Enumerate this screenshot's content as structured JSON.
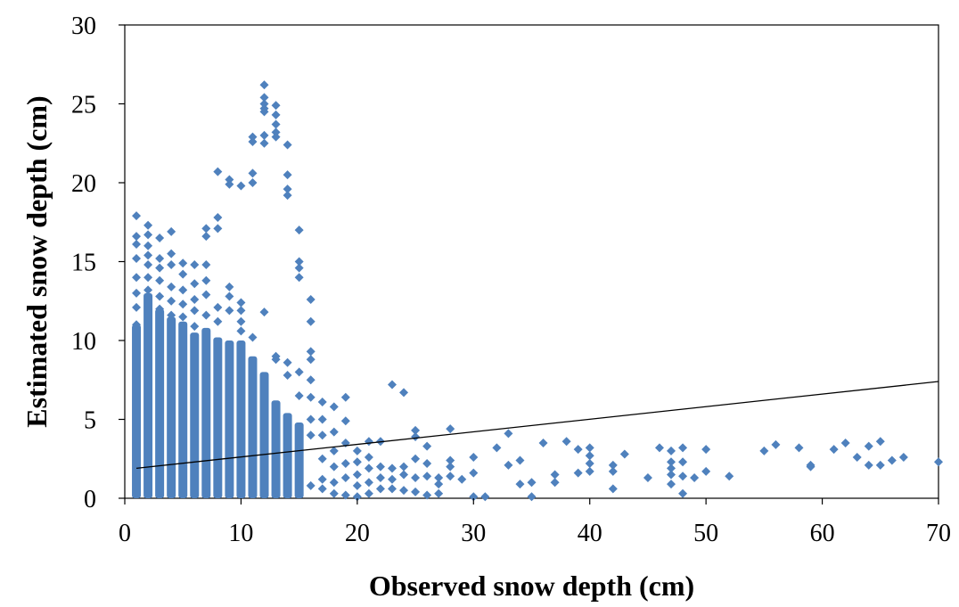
{
  "chart_data": {
    "type": "scatter",
    "title": "",
    "xlabel": "Observed snow depth (cm)",
    "ylabel": "Estimated snow depth (cm)",
    "xlim": [
      0,
      70
    ],
    "ylim": [
      0,
      30
    ],
    "xticks": [
      "0",
      "10",
      "20",
      "30",
      "40",
      "50",
      "60",
      "70"
    ],
    "yticks": [
      "0",
      "5",
      "10",
      "15",
      "20",
      "25",
      "30"
    ],
    "grid": false,
    "legend": "none",
    "colors": {
      "points": "#4f81bd",
      "trendline": "#000000",
      "axes": "#000000"
    },
    "trendline": {
      "x": [
        1,
        70
      ],
      "y": [
        1.9,
        7.4
      ]
    },
    "series": [
      {
        "points": [
          [
            1,
            17.9
          ],
          [
            1,
            16.6
          ],
          [
            1,
            16.1
          ],
          [
            1,
            15.2
          ],
          [
            1,
            14.0
          ],
          [
            1,
            13.0
          ],
          [
            1,
            12.1
          ],
          [
            1,
            11.0
          ],
          [
            2,
            17.3
          ],
          [
            2,
            16.7
          ],
          [
            2,
            16.0
          ],
          [
            2,
            15.4
          ],
          [
            2,
            14.8
          ],
          [
            2,
            14.0
          ],
          [
            2,
            13.2
          ],
          [
            3,
            16.5
          ],
          [
            3,
            15.2
          ],
          [
            3,
            14.6
          ],
          [
            3,
            13.8
          ],
          [
            3,
            12.8
          ],
          [
            3,
            12.0
          ],
          [
            4,
            16.9
          ],
          [
            4,
            15.5
          ],
          [
            4,
            14.8
          ],
          [
            4,
            13.4
          ],
          [
            4,
            12.5
          ],
          [
            4,
            11.6
          ],
          [
            5,
            14.9
          ],
          [
            5,
            14.2
          ],
          [
            5,
            13.2
          ],
          [
            5,
            12.3
          ],
          [
            5,
            11.5
          ],
          [
            6,
            14.8
          ],
          [
            6,
            13.6
          ],
          [
            6,
            12.6
          ],
          [
            6,
            11.9
          ],
          [
            6,
            10.9
          ],
          [
            7,
            17.1
          ],
          [
            7,
            16.6
          ],
          [
            7,
            14.8
          ],
          [
            7,
            13.8
          ],
          [
            7,
            12.9
          ],
          [
            7,
            11.6
          ],
          [
            8,
            20.7
          ],
          [
            8,
            17.8
          ],
          [
            8,
            17.1
          ],
          [
            8,
            12.1
          ],
          [
            8,
            11.2
          ],
          [
            9,
            20.2
          ],
          [
            9,
            19.9
          ],
          [
            9,
            13.4
          ],
          [
            9,
            12.8
          ],
          [
            9,
            11.9
          ],
          [
            10,
            19.8
          ],
          [
            10,
            12.4
          ],
          [
            10,
            11.9
          ],
          [
            10,
            11.2
          ],
          [
            10,
            10.6
          ],
          [
            11,
            22.9
          ],
          [
            11,
            22.6
          ],
          [
            11,
            20.6
          ],
          [
            11,
            20.0
          ],
          [
            11,
            10.2
          ],
          [
            12,
            26.2
          ],
          [
            12,
            25.4
          ],
          [
            12,
            25.0
          ],
          [
            12,
            24.7
          ],
          [
            12,
            24.5
          ],
          [
            12,
            23.0
          ],
          [
            12,
            22.5
          ],
          [
            12,
            11.8
          ],
          [
            13,
            24.9
          ],
          [
            13,
            24.3
          ],
          [
            13,
            23.7
          ],
          [
            13,
            23.2
          ],
          [
            13,
            22.9
          ],
          [
            13,
            9.0
          ],
          [
            13,
            8.8
          ],
          [
            14,
            22.4
          ],
          [
            14,
            20.5
          ],
          [
            14,
            19.6
          ],
          [
            14,
            19.2
          ],
          [
            14,
            8.6
          ],
          [
            14,
            7.8
          ],
          [
            15,
            17.0
          ],
          [
            15,
            15.0
          ],
          [
            15,
            14.6
          ],
          [
            15,
            14.0
          ],
          [
            15,
            8.0
          ],
          [
            15,
            6.5
          ],
          [
            16,
            12.6
          ],
          [
            16,
            11.2
          ],
          [
            16,
            9.3
          ],
          [
            16,
            8.8
          ],
          [
            16,
            7.5
          ],
          [
            16,
            6.4
          ],
          [
            16,
            5.0
          ],
          [
            16,
            4.0
          ],
          [
            16,
            0.8
          ],
          [
            17,
            6.1
          ],
          [
            17,
            5.0
          ],
          [
            17,
            4.0
          ],
          [
            17,
            2.5
          ],
          [
            17,
            1.2
          ],
          [
            17,
            0.6
          ],
          [
            18,
            5.8
          ],
          [
            18,
            4.2
          ],
          [
            18,
            3.0
          ],
          [
            18,
            2.0
          ],
          [
            18,
            1.0
          ],
          [
            18,
            0.3
          ],
          [
            19,
            6.4
          ],
          [
            19,
            4.9
          ],
          [
            19,
            3.5
          ],
          [
            19,
            2.2
          ],
          [
            19,
            1.3
          ],
          [
            19,
            0.2
          ],
          [
            20,
            3.0
          ],
          [
            20,
            2.3
          ],
          [
            20,
            1.5
          ],
          [
            20,
            0.8
          ],
          [
            20,
            0.1
          ],
          [
            21,
            3.6
          ],
          [
            21,
            2.6
          ],
          [
            21,
            1.9
          ],
          [
            21,
            1.0
          ],
          [
            21,
            0.3
          ],
          [
            22,
            3.6
          ],
          [
            22,
            2.0
          ],
          [
            22,
            1.3
          ],
          [
            22,
            0.6
          ],
          [
            23,
            7.2
          ],
          [
            23,
            1.9
          ],
          [
            23,
            1.2
          ],
          [
            23,
            0.6
          ],
          [
            24,
            6.7
          ],
          [
            24,
            2.0
          ],
          [
            24,
            1.5
          ],
          [
            24,
            0.5
          ],
          [
            25,
            4.3
          ],
          [
            25,
            3.9
          ],
          [
            25,
            2.5
          ],
          [
            25,
            1.3
          ],
          [
            25,
            0.4
          ],
          [
            26,
            3.3
          ],
          [
            26,
            2.2
          ],
          [
            26,
            1.4
          ],
          [
            26,
            0.2
          ],
          [
            27,
            1.3
          ],
          [
            27,
            0.9
          ],
          [
            27,
            0.3
          ],
          [
            28,
            4.4
          ],
          [
            28,
            2.4
          ],
          [
            28,
            2.0
          ],
          [
            28,
            1.4
          ],
          [
            29,
            1.2
          ],
          [
            30,
            2.6
          ],
          [
            30,
            1.6
          ],
          [
            30,
            0.1
          ],
          [
            31,
            0.1
          ],
          [
            32,
            3.2
          ],
          [
            33,
            4.1
          ],
          [
            33,
            2.1
          ],
          [
            34,
            2.4
          ],
          [
            34,
            0.9
          ],
          [
            35,
            1.0
          ],
          [
            35,
            0.1
          ],
          [
            36,
            3.5
          ],
          [
            37,
            1.5
          ],
          [
            37,
            1.0
          ],
          [
            38,
            3.6
          ],
          [
            39,
            3.1
          ],
          [
            39,
            1.6
          ],
          [
            40,
            3.2
          ],
          [
            40,
            2.7
          ],
          [
            40,
            2.2
          ],
          [
            40,
            1.7
          ],
          [
            42,
            2.1
          ],
          [
            42,
            1.7
          ],
          [
            42,
            0.6
          ],
          [
            43,
            2.8
          ],
          [
            45,
            1.3
          ],
          [
            46,
            3.2
          ],
          [
            47,
            3.0
          ],
          [
            47,
            2.3
          ],
          [
            47,
            1.9
          ],
          [
            47,
            1.5
          ],
          [
            47,
            0.9
          ],
          [
            48,
            3.2
          ],
          [
            48,
            2.3
          ],
          [
            48,
            1.4
          ],
          [
            48,
            0.3
          ],
          [
            49,
            1.3
          ],
          [
            50,
            3.1
          ],
          [
            50,
            1.7
          ],
          [
            52,
            1.4
          ],
          [
            55,
            3.0
          ],
          [
            56,
            3.4
          ],
          [
            58,
            3.2
          ],
          [
            59,
            2.1
          ],
          [
            59,
            2.0
          ],
          [
            61,
            3.1
          ],
          [
            62,
            3.5
          ],
          [
            63,
            2.6
          ],
          [
            64,
            3.3
          ],
          [
            64,
            2.1
          ],
          [
            65,
            3.6
          ],
          [
            65,
            2.1
          ],
          [
            66,
            2.4
          ],
          [
            67,
            2.6
          ],
          [
            70,
            2.3
          ]
        ]
      }
    ],
    "bars": [
      {
        "x": 1,
        "from": 0,
        "to": 11
      },
      {
        "x": 2,
        "from": 0,
        "to": 13
      },
      {
        "x": 3,
        "from": 0,
        "to": 12
      },
      {
        "x": 4,
        "from": 0,
        "to": 11.5
      },
      {
        "x": 5,
        "from": 0,
        "to": 11.2
      },
      {
        "x": 6,
        "from": 0,
        "to": 10.5
      },
      {
        "x": 7,
        "from": 0,
        "to": 10.8
      },
      {
        "x": 8,
        "from": 0,
        "to": 10.2
      },
      {
        "x": 9,
        "from": 0,
        "to": 10.0
      },
      {
        "x": 10,
        "from": 0,
        "to": 10.0
      },
      {
        "x": 11,
        "from": 0,
        "to": 9.0
      },
      {
        "x": 12,
        "from": 0,
        "to": 8.0
      },
      {
        "x": 13,
        "from": 0,
        "to": 6.2
      },
      {
        "x": 14,
        "from": 0,
        "to": 5.4
      },
      {
        "x": 15,
        "from": 0,
        "to": 4.8
      }
    ]
  }
}
